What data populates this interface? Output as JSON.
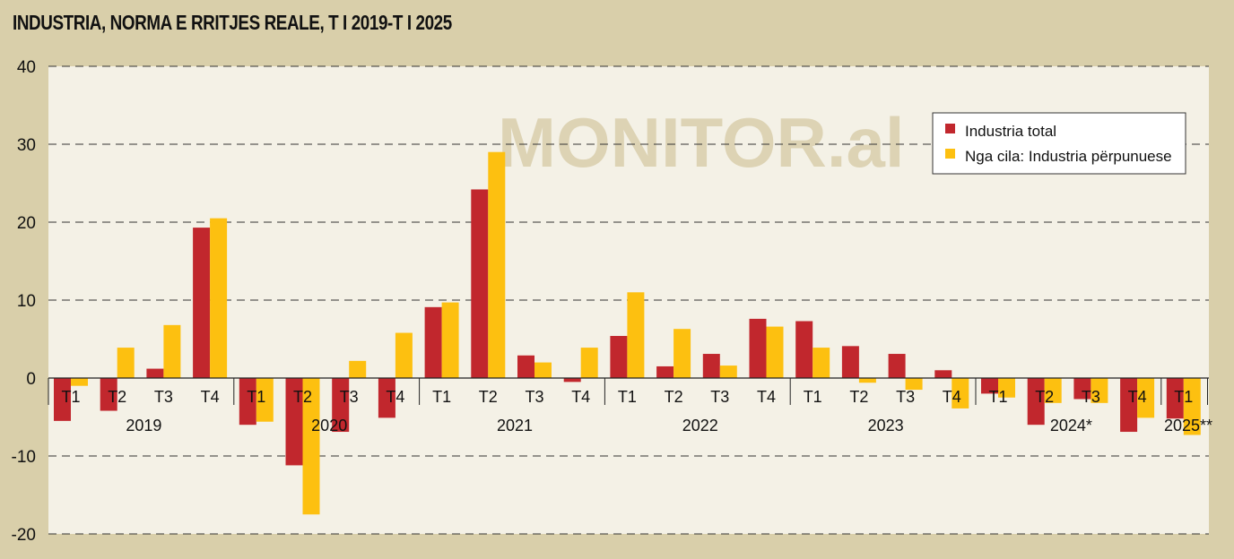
{
  "chart_data": {
    "type": "bar",
    "title": "INDUSTRIA, NORMA E RRITJES REALE, T I 2019-T I 2025",
    "watermark": "MONITOR.al",
    "ylim": [
      -20,
      40
    ],
    "yticks": [
      -20,
      -10,
      0,
      10,
      20,
      30,
      40
    ],
    "grid": true,
    "legend_position": "top-right",
    "colors": {
      "series1": "#c1272d",
      "series2": "#fdc010",
      "plot_bg": "#f4f1e6",
      "frame_bg": "#d9cfaa",
      "watermark": "#ddd3b4"
    },
    "groups": [
      {
        "year": "2019",
        "quarters": [
          "T1",
          "T2",
          "T3",
          "T4"
        ]
      },
      {
        "year": "2020",
        "quarters": [
          "T1",
          "T2",
          "T3",
          "T4"
        ]
      },
      {
        "year": "2021",
        "quarters": [
          "T1",
          "T2",
          "T3",
          "T4"
        ]
      },
      {
        "year": "2022",
        "quarters": [
          "T1",
          "T2",
          "T3",
          "T4"
        ]
      },
      {
        "year": "2023",
        "quarters": [
          "T1",
          "T2",
          "T3",
          "T4"
        ]
      },
      {
        "year": "2024*",
        "quarters": [
          "T1",
          "T2",
          "T3",
          "T4"
        ]
      },
      {
        "year": "2025**",
        "quarters": [
          "T1"
        ]
      }
    ],
    "series": [
      {
        "name": "Industria total",
        "values": [
          -5.5,
          -4.2,
          1.2,
          19.3,
          -6.0,
          -11.2,
          -6.9,
          -5.1,
          9.1,
          24.2,
          2.9,
          -0.5,
          5.4,
          1.5,
          3.1,
          7.6,
          7.3,
          4.1,
          3.1,
          1.0,
          -2.0,
          -6.0,
          -2.7,
          -6.9,
          -5.2
        ]
      },
      {
        "name": "Nga cila: Industria përpunuese",
        "values": [
          -1.0,
          3.9,
          6.8,
          20.5,
          -5.6,
          -17.5,
          2.2,
          5.8,
          9.7,
          29.0,
          2.0,
          3.9,
          11.0,
          6.3,
          1.6,
          6.6,
          3.9,
          -0.6,
          -1.5,
          -3.9,
          -2.5,
          -3.2,
          -3.2,
          -5.1,
          -7.3
        ]
      }
    ]
  }
}
